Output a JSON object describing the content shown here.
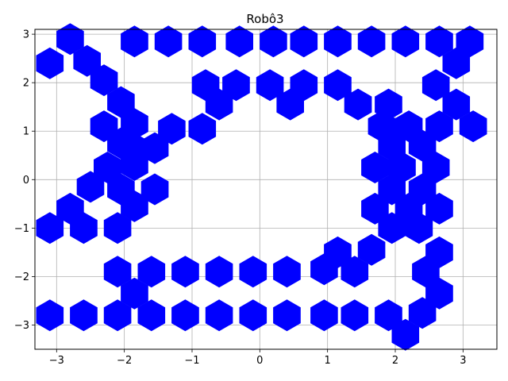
{
  "chart_data": {
    "type": "scatter",
    "title": "Robô3",
    "xlabel": "",
    "ylabel": "",
    "xlim": [
      -3.32,
      3.5
    ],
    "ylim": [
      -3.5,
      3.1
    ],
    "xticks": [
      -3,
      -2,
      -1,
      0,
      1,
      2,
      3
    ],
    "yticks": [
      -3,
      -2,
      -1,
      0,
      1,
      2,
      3
    ],
    "grid": true,
    "marker": "hexagon",
    "marker_color": "#0000ff",
    "series": [
      {
        "points": [
          [
            -2.8,
            2.9
          ],
          [
            -3.1,
            2.4
          ],
          [
            -2.55,
            2.45
          ],
          [
            -2.3,
            2.05
          ],
          [
            -2.05,
            1.6
          ],
          [
            -2.3,
            1.1
          ],
          [
            -1.85,
            1.15
          ],
          [
            -2.05,
            0.75
          ],
          [
            -1.8,
            0.6
          ],
          [
            -1.55,
            0.65
          ],
          [
            -1.3,
            1.05
          ],
          [
            -2.25,
            0.25
          ],
          [
            -1.85,
            0.3
          ],
          [
            -2.5,
            -0.15
          ],
          [
            -2.05,
            -0.2
          ],
          [
            -1.55,
            -0.2
          ],
          [
            -1.85,
            -0.55
          ],
          [
            -2.8,
            -0.6
          ],
          [
            -3.1,
            -1.0
          ],
          [
            -2.6,
            -1.0
          ],
          [
            -2.1,
            -1.0
          ],
          [
            -1.85,
            2.85
          ],
          [
            -1.35,
            2.85
          ],
          [
            -0.85,
            2.85
          ],
          [
            -0.3,
            2.85
          ],
          [
            0.2,
            2.85
          ],
          [
            0.65,
            2.85
          ],
          [
            1.15,
            2.85
          ],
          [
            1.65,
            2.85
          ],
          [
            2.15,
            2.85
          ],
          [
            2.65,
            2.85
          ],
          [
            3.1,
            2.85
          ],
          [
            2.9,
            2.4
          ],
          [
            -0.8,
            1.95
          ],
          [
            -0.35,
            1.95
          ],
          [
            0.15,
            1.95
          ],
          [
            0.65,
            1.95
          ],
          [
            1.15,
            1.95
          ],
          [
            -0.6,
            1.55
          ],
          [
            0.45,
            1.55
          ],
          [
            1.45,
            1.55
          ],
          [
            -0.85,
            1.05
          ],
          [
            2.6,
            1.95
          ],
          [
            2.9,
            1.55
          ],
          [
            3.15,
            1.1
          ],
          [
            2.65,
            1.1
          ],
          [
            1.9,
            1.55
          ],
          [
            1.8,
            1.1
          ],
          [
            2.2,
            1.1
          ],
          [
            1.95,
            0.7
          ],
          [
            2.4,
            0.7
          ],
          [
            1.7,
            0.25
          ],
          [
            2.1,
            0.25
          ],
          [
            2.6,
            0.25
          ],
          [
            1.95,
            -0.2
          ],
          [
            2.4,
            -0.2
          ],
          [
            1.7,
            -0.6
          ],
          [
            2.2,
            -0.6
          ],
          [
            2.65,
            -0.6
          ],
          [
            1.95,
            -1.0
          ],
          [
            2.35,
            -1.0
          ],
          [
            2.65,
            -1.5
          ],
          [
            1.65,
            -1.45
          ],
          [
            1.15,
            -1.5
          ],
          [
            1.4,
            -1.9
          ],
          [
            0.95,
            -1.85
          ],
          [
            2.45,
            -1.9
          ],
          [
            2.65,
            -2.35
          ],
          [
            -2.1,
            -1.9
          ],
          [
            -1.6,
            -1.9
          ],
          [
            -1.1,
            -1.9
          ],
          [
            -0.6,
            -1.9
          ],
          [
            -0.1,
            -1.9
          ],
          [
            0.4,
            -1.9
          ],
          [
            -1.85,
            -2.35
          ],
          [
            -3.1,
            -2.8
          ],
          [
            -2.6,
            -2.8
          ],
          [
            -2.1,
            -2.8
          ],
          [
            -1.6,
            -2.8
          ],
          [
            -1.1,
            -2.8
          ],
          [
            -0.6,
            -2.8
          ],
          [
            -0.1,
            -2.8
          ],
          [
            0.4,
            -2.8
          ],
          [
            0.95,
            -2.8
          ],
          [
            1.4,
            -2.8
          ],
          [
            1.9,
            -2.8
          ],
          [
            2.4,
            -2.75
          ],
          [
            2.15,
            -3.2
          ]
        ]
      }
    ]
  }
}
